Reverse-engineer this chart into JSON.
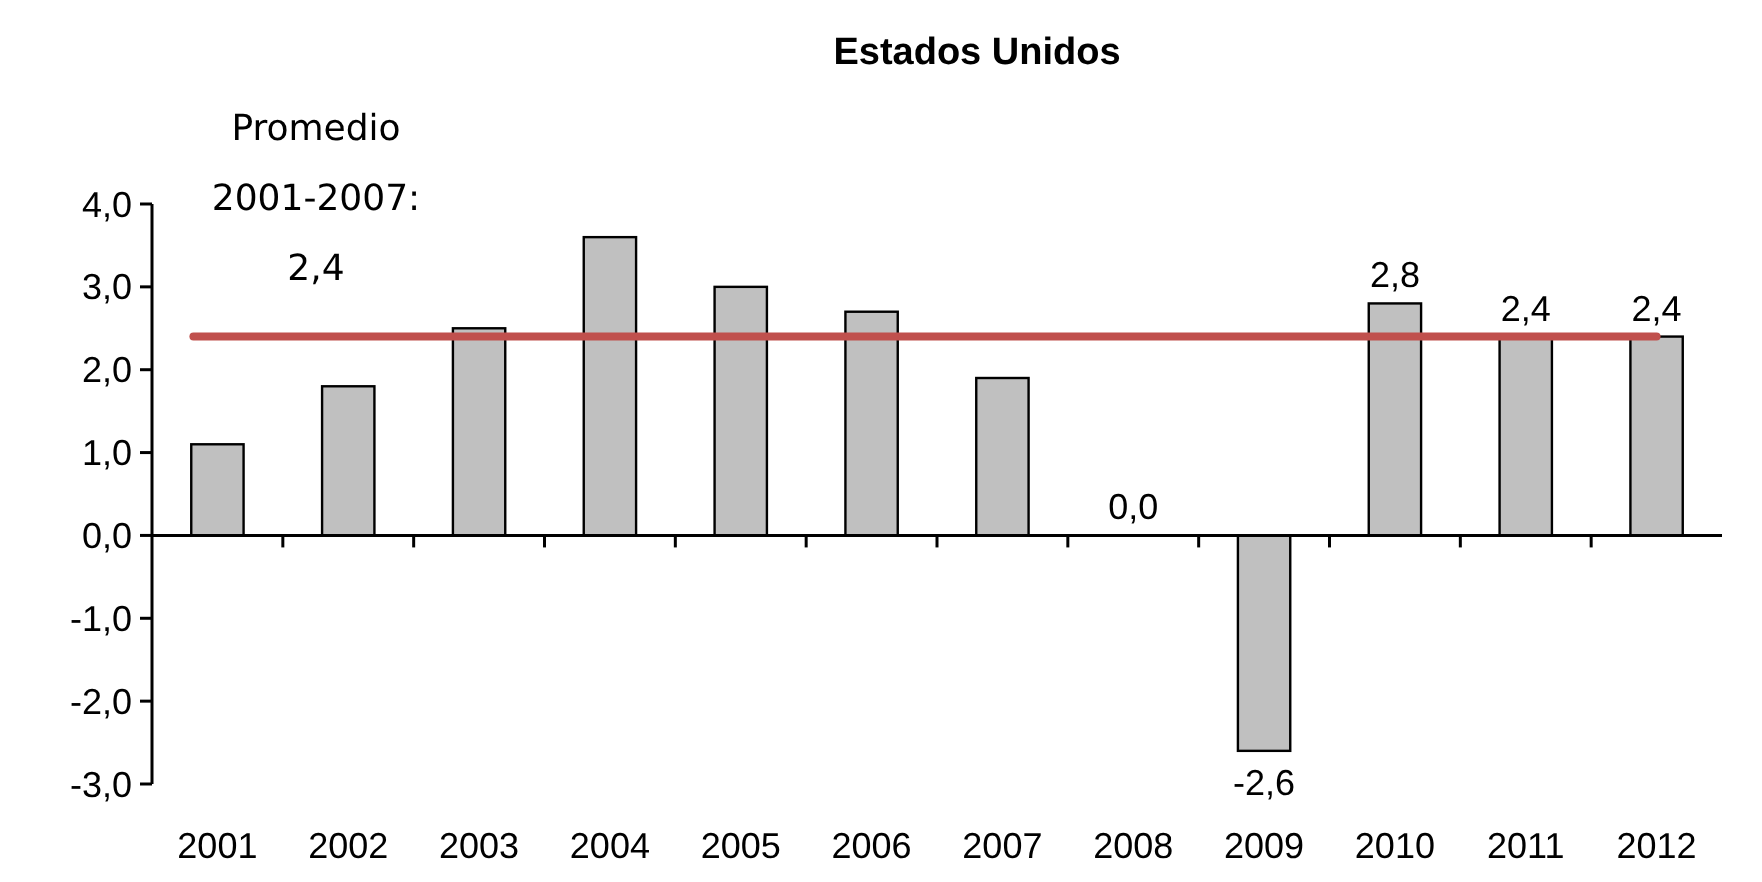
{
  "chart_data": {
    "type": "bar",
    "title": "Estados Unidos",
    "categories": [
      "2001",
      "2002",
      "2003",
      "2004",
      "2005",
      "2006",
      "2007",
      "2008",
      "2009",
      "2010",
      "2011",
      "2012"
    ],
    "series": [
      {
        "color": "#c0c0c0",
        "values": [
          1.1,
          1.8,
          2.5,
          3.6,
          3.0,
          2.7,
          1.9,
          0.0,
          -2.6,
          2.8,
          2.4,
          2.4
        ],
        "value_labels": [
          null,
          null,
          null,
          null,
          null,
          null,
          null,
          "0,0",
          "-2,6",
          "2,8",
          "2,4",
          "2,4"
        ]
      }
    ],
    "ylim": [
      -3,
      4
    ],
    "yticks": [
      {
        "value": -3,
        "label": "-3,0"
      },
      {
        "value": -2,
        "label": "-2,0"
      },
      {
        "value": -1,
        "label": "-1,0"
      },
      {
        "value": 0,
        "label": "0,0"
      },
      {
        "value": 1,
        "label": "1,0"
      },
      {
        "value": 2,
        "label": "2,0"
      },
      {
        "value": 3,
        "label": "3,0"
      },
      {
        "value": 4,
        "label": "4,0"
      }
    ],
    "ref_lines": [
      {
        "axis": "y",
        "value": 2.4,
        "label": "Promedio 2001-2007: 2,4",
        "color": "#c0504d"
      }
    ]
  }
}
